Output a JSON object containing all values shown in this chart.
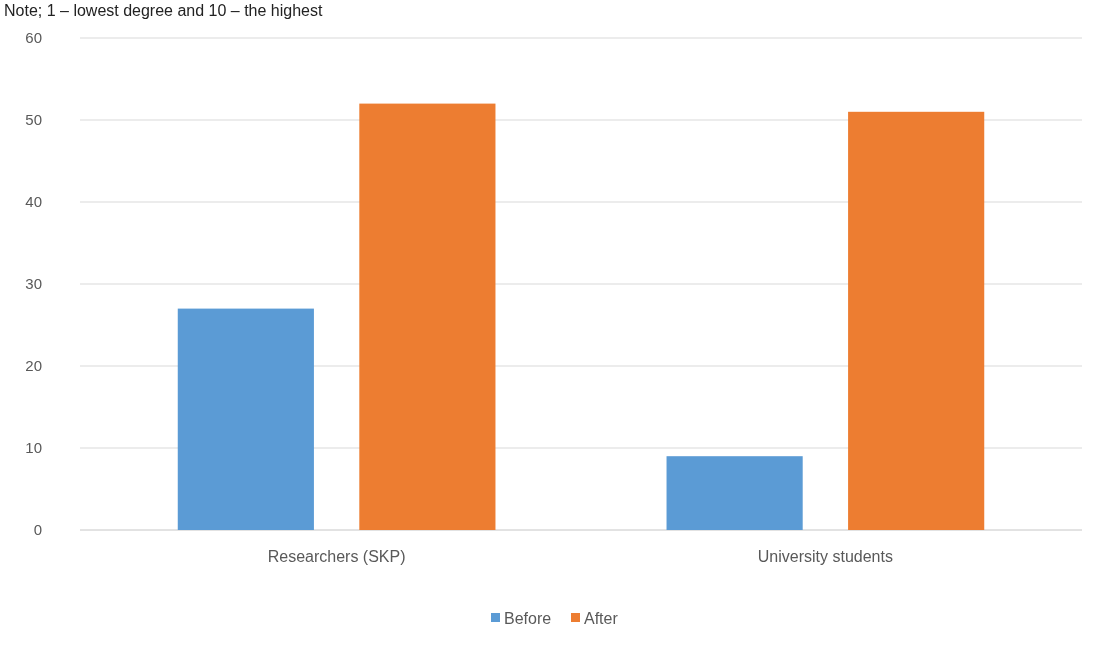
{
  "chart_data": {
    "type": "bar",
    "annotations": [
      "Note; 1 – lowest degree and 10 – the highest"
    ],
    "categories": [
      "Researchers (SKP)",
      "University students"
    ],
    "series": [
      {
        "name": "Before",
        "color": "#5b9bd5",
        "values": [
          27,
          9
        ]
      },
      {
        "name": "After",
        "color": "#ed7d31",
        "values": [
          52,
          51
        ]
      }
    ],
    "ylim": [
      0,
      60
    ],
    "yticks": [
      0,
      10,
      20,
      30,
      40,
      50,
      60
    ],
    "grid": "y",
    "legend": "bottom"
  }
}
